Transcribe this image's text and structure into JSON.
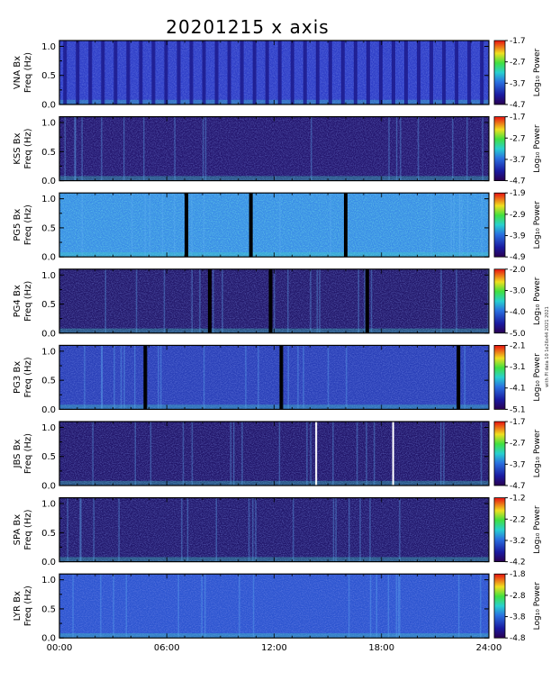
{
  "chart_data": {
    "type": "heatmap",
    "title": "20201215 x axis",
    "xlabel": "",
    "x_ticks": [
      "00:00",
      "06:00",
      "12:00",
      "18:00",
      "24:00"
    ],
    "x_range_hours": [
      0,
      24
    ],
    "y_ticks": [
      "0.0",
      "0.5",
      "1.0"
    ],
    "ylim": [
      0,
      1.1
    ],
    "colorbar_label": "Log₁₀ Power",
    "side_note": "with PI data 10 1e26x44 2021 2021",
    "colormap": "rainbow (purple → blue → cyan → green → yellow → red)",
    "panels": [
      {
        "name": "VNA Bx",
        "ylabel": "Freq (Hz)",
        "colorbar_ticks": [
          "-1.7",
          "-2.7",
          "-3.7",
          "-4.7"
        ],
        "clim": [
          -4.7,
          -1.7
        ],
        "data_gaps_hours": []
      },
      {
        "name": "KSS Bx",
        "ylabel": "Freq (Hz)",
        "colorbar_ticks": [
          "-1.7",
          "-2.7",
          "-3.7",
          "-4.7"
        ],
        "clim": [
          -4.7,
          -1.7
        ],
        "data_gaps_hours": []
      },
      {
        "name": "PG5 Bx",
        "ylabel": "Freq (Hz)",
        "colorbar_ticks": [
          "-1.9",
          "-2.9",
          "-3.9",
          "-4.9"
        ],
        "clim": [
          -4.9,
          -1.9
        ],
        "data_gaps_hours": [
          7.1,
          10.7,
          16.0
        ]
      },
      {
        "name": "PG4 Bx",
        "ylabel": "Freq (Hz)",
        "colorbar_ticks": [
          "-2.0",
          "-3.0",
          "-4.0",
          "-5.0"
        ],
        "clim": [
          -5.0,
          -2.0
        ],
        "data_gaps_hours": [
          8.4,
          11.8,
          17.2
        ]
      },
      {
        "name": "PG3 Bx",
        "ylabel": "Freq (Hz)",
        "colorbar_ticks": [
          "-2.1",
          "-3.1",
          "-4.1",
          "-5.1"
        ],
        "clim": [
          -5.1,
          -2.1
        ],
        "data_gaps_hours": [
          4.8,
          12.4,
          22.3
        ]
      },
      {
        "name": "JBS Bx",
        "ylabel": "Freq (Hz)",
        "colorbar_ticks": [
          "-1.7",
          "-2.7",
          "-3.7",
          "-4.7"
        ],
        "clim": [
          -4.7,
          -1.7
        ],
        "data_gaps_hours": [
          14.4,
          18.7
        ]
      },
      {
        "name": "SPA Bx",
        "ylabel": "Freq (Hz)",
        "colorbar_ticks": [
          "-1.2",
          "-2.2",
          "-3.2",
          "-4.2"
        ],
        "clim": [
          -4.2,
          -1.2
        ],
        "data_gaps_hours": []
      },
      {
        "name": "LYR Bx",
        "ylabel": "Freq (Hz)",
        "colorbar_ticks": [
          "-1.8",
          "-2.8",
          "-3.8",
          "-4.8"
        ],
        "clim": [
          -4.8,
          -1.8
        ],
        "data_gaps_hours": []
      }
    ]
  }
}
